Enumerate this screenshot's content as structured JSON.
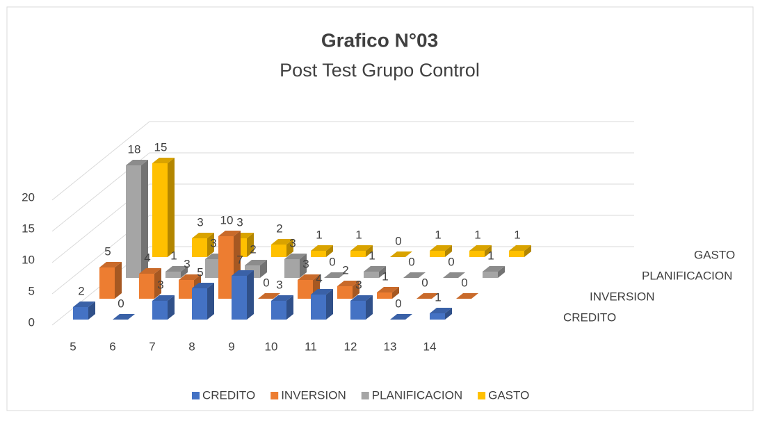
{
  "chart_data": {
    "type": "bar3d",
    "title": "Grafico N°03",
    "subtitle": "Post Test Grupo Control",
    "categories": [
      "5",
      "6",
      "7",
      "8",
      "9",
      "10",
      "11",
      "12",
      "13",
      "14"
    ],
    "series": [
      {
        "name": "CREDITO",
        "color": "#4472c4",
        "values": [
          2,
          0,
          3,
          5,
          7,
          3,
          4,
          3,
          0,
          1
        ]
      },
      {
        "name": "INVERSION",
        "color": "#ed7d31",
        "values": [
          5,
          4,
          3,
          10,
          0,
          3,
          2,
          1,
          0,
          0
        ]
      },
      {
        "name": "PLANIFICACION",
        "color": "#a5a5a5",
        "values": [
          18,
          1,
          3,
          2,
          3,
          0,
          1,
          0,
          0,
          1
        ]
      },
      {
        "name": "GASTO",
        "color": "#ffc000",
        "values": [
          15,
          3,
          3,
          2,
          1,
          1,
          0,
          1,
          1,
          1
        ]
      }
    ],
    "ylim": [
      0,
      20
    ],
    "yticks": [
      0,
      5,
      10,
      15,
      20
    ],
    "grid": true,
    "legend": "bottom"
  }
}
